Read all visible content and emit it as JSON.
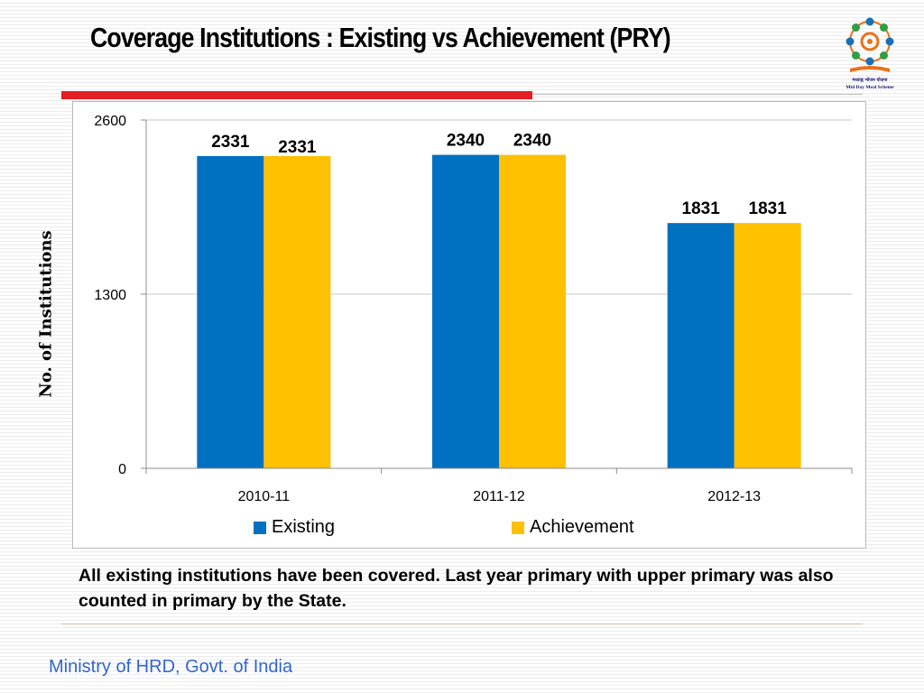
{
  "slide": {
    "title": "Coverage Institutions : Existing vs Achievement (PRY)",
    "caption": "All existing institutions have been covered. Last year primary with upper primary was also counted in primary by the State.",
    "footer": "Ministry of HRD, Govt. of India",
    "logo": {
      "icon": "mid-day-meal-scheme-logo",
      "text_hindi": "मध्याह्न भोजन योजना",
      "text_english": "Mid Day Meal Scheme"
    },
    "colors": {
      "rule_red": "#e31e24",
      "footer_blue": "#3366cc"
    }
  },
  "chart_data": {
    "type": "bar",
    "title": "",
    "xlabel": "",
    "ylabel": "No. of Institutions",
    "categories": [
      "2010-11",
      "2011-12",
      "2012-13"
    ],
    "series": [
      {
        "name": "Existing",
        "values": [
          2331,
          2340,
          1831
        ],
        "color": "#0070c0"
      },
      {
        "name": "Achievement",
        "values": [
          2331,
          2340,
          1831
        ],
        "color": "#ffc000"
      }
    ],
    "ylim": [
      0,
      2600
    ],
    "yticks": [
      0,
      1300,
      2600
    ],
    "grid": true,
    "legend": "bottom",
    "data_labels": true
  }
}
